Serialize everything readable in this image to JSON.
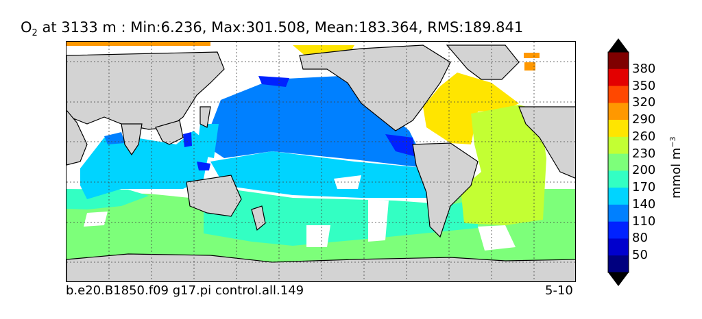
{
  "title": {
    "species": "O",
    "species_sub": "2",
    "text": " at 3133 m : Min:6.236, Max:301.508, Mean:183.364, RMS:189.841"
  },
  "footer": {
    "case_name": "b.e20.B1850.f09 g17.pi control.all.149",
    "date": "5-10"
  },
  "colorbar": {
    "unit": "mmol m",
    "unit_exp": "−3",
    "ticks": [
      "50",
      "80",
      "110",
      "140",
      "170",
      "200",
      "230",
      "260",
      "290",
      "320",
      "350",
      "380"
    ],
    "colors": [
      "#00007f",
      "#0000cd",
      "#0022ff",
      "#0080ff",
      "#00d4ff",
      "#33ffc3",
      "#7dff7a",
      "#c3ff33",
      "#ffe500",
      "#ff9800",
      "#ff4800",
      "#e30000",
      "#7f0000"
    ],
    "extend": "both"
  },
  "colors": {
    "land": "#d3d3d3",
    "coast": "#000000",
    "grid": "#404040",
    "missing": "#ffffff"
  },
  "map": {
    "projection": "equirectangular",
    "central_longitude": 180,
    "gridlines": "dashed"
  }
}
